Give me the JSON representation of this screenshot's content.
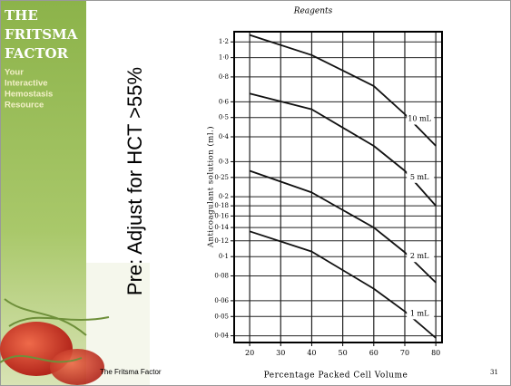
{
  "slide": {
    "brand_lines": [
      "THE",
      "FRITSMA",
      "FACTOR"
    ],
    "tagline_lines": [
      "Your",
      "Interactive",
      "Hemostasis",
      "Resource"
    ],
    "heading": "Pre: Adjust for HCT >55%",
    "footer": "The Fritsma Factor",
    "page_number": "31"
  },
  "chart_data": {
    "type": "line",
    "title": "Reagents",
    "x_label": "Percentage Packed Cell Volume",
    "y_label": "Anticoagulant solution (ml.)",
    "x": [
      20,
      40,
      60,
      70,
      80
    ],
    "series": [
      {
        "name": "10 mL",
        "color": "#111111",
        "values": [
          1.3,
          1.03,
          0.72,
          0.52,
          0.36
        ]
      },
      {
        "name": "5 mL",
        "color": "#111111",
        "values": [
          0.66,
          0.55,
          0.36,
          0.27,
          0.18
        ]
      },
      {
        "name": "2 mL",
        "color": "#111111",
        "values": [
          0.27,
          0.21,
          0.14,
          0.105,
          0.074
        ]
      },
      {
        "name": "1 mL",
        "color": "#111111",
        "values": [
          0.134,
          0.106,
          0.069,
          0.053,
          0.039
        ]
      }
    ],
    "xlim": [
      15,
      82
    ],
    "xticks": [
      20,
      30,
      40,
      50,
      60,
      70,
      80
    ],
    "ylim": [
      0.037,
      1.35
    ],
    "y_log": true,
    "yticks": [
      {
        "value": 1.2,
        "label": "1·2"
      },
      {
        "value": 1.0,
        "label": "1·0"
      },
      {
        "value": 0.8,
        "label": "0·8"
      },
      {
        "value": 0.6,
        "label": "0·6"
      },
      {
        "value": 0.5,
        "label": "0·5"
      },
      {
        "value": 0.4,
        "label": "0·4"
      },
      {
        "value": 0.3,
        "label": "0·3"
      },
      {
        "value": 0.25,
        "label": "0·25"
      },
      {
        "value": 0.2,
        "label": "0·2"
      },
      {
        "value": 0.18,
        "label": "0·18"
      },
      {
        "value": 0.16,
        "label": "0·16"
      },
      {
        "value": 0.14,
        "label": "0·14"
      },
      {
        "value": 0.12,
        "label": "0·12"
      },
      {
        "value": 0.1,
        "label": "0·1"
      },
      {
        "value": 0.08,
        "label": "0·08"
      },
      {
        "value": 0.06,
        "label": "0·06"
      },
      {
        "value": 0.05,
        "label": "0·05"
      },
      {
        "value": 0.04,
        "label": "0·04"
      }
    ],
    "grid": true
  }
}
